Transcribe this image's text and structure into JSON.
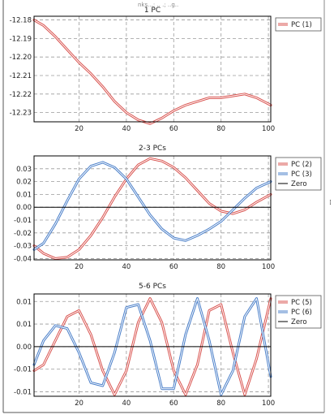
{
  "header": {
    "fragment_text": "nks...; .. .; ..g.."
  },
  "side_glyph": "⁞",
  "chart_data": [
    {
      "type": "line",
      "title": "1 PC",
      "xlabel": "",
      "ylabel": "",
      "xlim": [
        1,
        101
      ],
      "ylim": [
        -12.235,
        -12.178
      ],
      "xticks": [
        20,
        40,
        60,
        80,
        100
      ],
      "yticks": [
        -12.18,
        -12.19,
        -12.2,
        -12.21,
        -12.22,
        -12.23
      ],
      "ytick_labels": [
        "-12.18",
        "-12.19",
        "-12.20",
        "-12.21",
        "-12.22",
        "-12.23"
      ],
      "grid": true,
      "legend": "top-right",
      "series": [
        {
          "name": "PC (1)",
          "color": "#d9534f",
          "x": [
            1,
            5,
            10,
            15,
            20,
            25,
            30,
            35,
            40,
            45,
            50,
            55,
            60,
            65,
            70,
            75,
            80,
            85,
            90,
            95,
            101
          ],
          "y": [
            -12.18,
            -12.183,
            -12.189,
            -12.196,
            -12.203,
            -12.209,
            -12.216,
            -12.224,
            -12.23,
            -12.234,
            -12.236,
            -12.233,
            -12.229,
            -12.226,
            -12.224,
            -12.222,
            -12.222,
            -12.221,
            -12.22,
            -12.222,
            -12.226
          ]
        }
      ]
    },
    {
      "type": "line",
      "title": "2-3 PCs",
      "xlabel": "",
      "ylabel": "",
      "xlim": [
        1,
        101
      ],
      "ylim": [
        -0.041,
        0.04
      ],
      "xticks": [
        20,
        40,
        60,
        80,
        100
      ],
      "yticks": [
        0.03,
        0.02,
        0.01,
        0.0,
        -0.01,
        -0.02,
        -0.03,
        -0.04
      ],
      "ytick_labels": [
        "0.03",
        "0.02",
        "0.01",
        "0.00",
        "-0.01",
        "-0.02",
        "-0.03",
        "-0.04"
      ],
      "grid": true,
      "legend": "top-right",
      "zero_line": true,
      "series": [
        {
          "name": "PC (2)",
          "color": "#d9534f",
          "x": [
            1,
            5,
            10,
            15,
            20,
            25,
            30,
            35,
            40,
            45,
            50,
            55,
            60,
            65,
            70,
            75,
            80,
            85,
            90,
            95,
            101
          ],
          "y": [
            -0.03,
            -0.036,
            -0.04,
            -0.039,
            -0.033,
            -0.022,
            -0.008,
            0.008,
            0.022,
            0.033,
            0.038,
            0.036,
            0.031,
            0.023,
            0.013,
            0.003,
            -0.003,
            -0.005,
            -0.002,
            0.004,
            0.01
          ]
        },
        {
          "name": "PC (3)",
          "color": "#4a7fc9",
          "x": [
            1,
            5,
            10,
            15,
            20,
            25,
            30,
            35,
            40,
            45,
            50,
            55,
            60,
            65,
            70,
            75,
            80,
            85,
            90,
            95,
            101
          ],
          "y": [
            -0.033,
            -0.028,
            -0.013,
            0.005,
            0.022,
            0.032,
            0.035,
            0.031,
            0.022,
            0.008,
            -0.006,
            -0.017,
            -0.024,
            -0.026,
            -0.022,
            -0.017,
            -0.011,
            -0.002,
            0.007,
            0.015,
            0.02
          ]
        },
        {
          "name": "Zero",
          "color": "#000000",
          "x": [
            1,
            101
          ],
          "y": [
            0,
            0
          ]
        }
      ]
    },
    {
      "type": "line",
      "title": "5-6 PCs",
      "xlabel": "",
      "ylabel": "",
      "xlim": [
        1,
        101
      ],
      "ylim": [
        -0.0165,
        0.0175
      ],
      "xticks": [
        20,
        40,
        60,
        80,
        100
      ],
      "yticks": [
        0.015,
        0.0075,
        0.0,
        -0.0075,
        -0.015
      ],
      "ytick_labels": [
        "0.01",
        "0.01",
        "0.00",
        "-0.01",
        "-0.01"
      ],
      "grid": true,
      "legend": "top-right",
      "zero_line": true,
      "series": [
        {
          "name": "PC (5)",
          "color": "#d9534f",
          "x": [
            1,
            5,
            10,
            15,
            20,
            25,
            30,
            35,
            40,
            45,
            50,
            55,
            60,
            65,
            70,
            75,
            80,
            85,
            90,
            95,
            101
          ],
          "y": [
            -0.008,
            -0.006,
            0.002,
            0.01,
            0.012,
            0.004,
            -0.008,
            -0.016,
            -0.008,
            0.008,
            0.016,
            0.008,
            -0.008,
            -0.016,
            -0.006,
            0.012,
            0.014,
            -0.002,
            -0.016,
            -0.004,
            0.016
          ]
        },
        {
          "name": "PC (6)",
          "color": "#4a7fc9",
          "x": [
            1,
            5,
            10,
            15,
            20,
            25,
            30,
            35,
            40,
            45,
            50,
            55,
            60,
            65,
            70,
            75,
            80,
            85,
            90,
            95,
            101
          ],
          "y": [
            -0.006,
            0.002,
            0.007,
            0.006,
            -0.002,
            -0.012,
            -0.013,
            -0.002,
            0.013,
            0.014,
            0.002,
            -0.014,
            -0.014,
            0.004,
            0.016,
            0.002,
            -0.016,
            -0.008,
            0.01,
            0.016,
            -0.01
          ]
        },
        {
          "name": "Zero",
          "color": "#000000",
          "x": [
            1,
            101
          ],
          "y": [
            0,
            0
          ]
        }
      ]
    }
  ]
}
